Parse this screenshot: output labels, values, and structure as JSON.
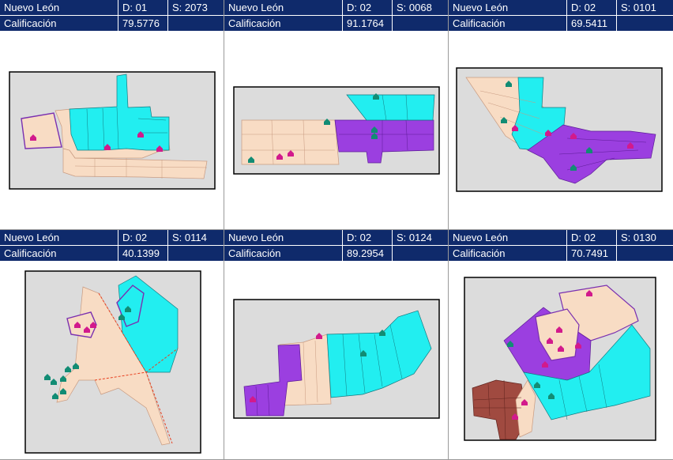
{
  "cards": [
    {
      "state": "Nuevo León",
      "district": "D: 01",
      "section": "S: 2073",
      "label": "Calificación",
      "score": "79.5776"
    },
    {
      "state": "Nuevo León",
      "district": "D: 02",
      "section": "S: 0068",
      "label": "Calificación",
      "score": "91.1764"
    },
    {
      "state": "Nuevo León",
      "district": "D: 02",
      "section": "S: 0101",
      "label": "Calificación",
      "score": "69.5411"
    },
    {
      "state": "Nuevo León",
      "district": "D: 02",
      "section": "S: 0114",
      "label": "Calificación",
      "score": "40.1399"
    },
    {
      "state": "Nuevo León",
      "district": "D: 02",
      "section": "S: 0124",
      "label": "Calificación",
      "score": "89.2954"
    },
    {
      "state": "Nuevo León",
      "district": "D: 02",
      "section": "S: 0130",
      "label": "Calificación",
      "score": "70.7491"
    }
  ],
  "colors": {
    "header_bg": "#0f2a6b",
    "beige": "#f8dcc4",
    "cyan": "#22eef0",
    "purple": "#9b3fe0",
    "brown": "#a04a40",
    "marker_pink": "#d21a8c",
    "marker_teal": "#128c74",
    "map_bg": "#dcdcdc"
  },
  "icons": [
    "house-marker-icon"
  ]
}
